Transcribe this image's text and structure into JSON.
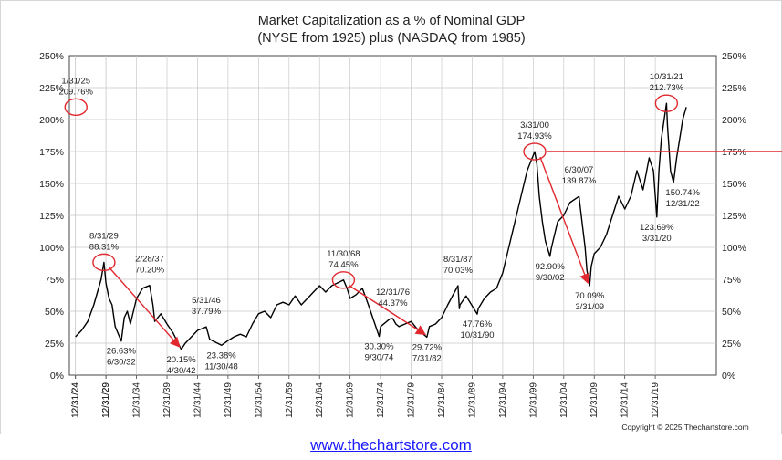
{
  "chart_data": {
    "type": "line",
    "title": "Market Capitalization as a % of Nominal GDP",
    "subtitle": "(NYSE from 1925) plus (NASDAQ from 1985)",
    "xlabel": "",
    "ylabel": "",
    "ylim": [
      0,
      250
    ],
    "y_ticks": [
      "0%",
      "25%",
      "50%",
      "75%",
      "100%",
      "125%",
      "150%",
      "175%",
      "200%",
      "225%",
      "250%"
    ],
    "x_ticks": [
      "12/31/24",
      "12/31/29",
      "12/31/34",
      "12/31/39",
      "12/31/44",
      "12/31/49",
      "12/31/54",
      "12/31/59",
      "12/31/64",
      "12/31/69",
      "12/31/74",
      "12/31/79",
      "12/31/84",
      "12/31/89",
      "12/31/94",
      "12/31/99",
      "12/31/04",
      "12/31/09",
      "12/31/14",
      "12/31/19",
      "12/31/24",
      "12/31/29"
    ],
    "xlim": [
      1924,
      2030
    ],
    "grid": true,
    "reference_line": {
      "value": 175,
      "color": "#e0282e"
    },
    "series": [
      {
        "color": "#000000",
        "x": [
          1925,
          1926,
          1927,
          1928,
          1929.2,
          1929.67,
          1930,
          1930.5,
          1931,
          1931.5,
          1932.5,
          1933,
          1933.5,
          1934,
          1935,
          1936,
          1937.16,
          1937.7,
          1938,
          1939,
          1940,
          1941,
          1942.33,
          1943,
          1944,
          1945,
          1946.42,
          1947,
          1948.92,
          1950,
          1951,
          1952,
          1953,
          1954,
          1955,
          1956,
          1957,
          1958,
          1959,
          1960,
          1961,
          1962,
          1963,
          1964,
          1965,
          1966,
          1967,
          1968.92,
          1969.5,
          1970,
          1971,
          1972,
          1973,
          1974.75,
          1975,
          1976.5,
          1976.99,
          1977.5,
          1978,
          1979,
          1980,
          1981,
          1982.58,
          1983,
          1984,
          1985,
          1986,
          1987.67,
          1987.9,
          1988,
          1989,
          1990.83,
          1991,
          1992,
          1993,
          1994,
          1995,
          1996,
          1997,
          1998,
          1999,
          2000.25,
          2000.6,
          2001,
          2001.5,
          2002,
          2002.75,
          2003,
          2004,
          2005,
          2006,
          2007.5,
          2008,
          2008.5,
          2008.8,
          2009.25,
          2009.5,
          2010,
          2011,
          2012,
          2013,
          2014,
          2015,
          2016,
          2017,
          2018,
          2019,
          2019.7,
          2020.25,
          2020.6,
          2021,
          2021.83,
          2022,
          2022.5,
          2022.99,
          2023.5,
          2024,
          2024.5,
          2025.08
        ],
        "values": [
          30,
          35,
          42,
          55,
          75,
          88.31,
          72,
          60,
          55,
          38,
          26.63,
          45,
          50,
          40,
          60,
          68,
          70.2,
          55,
          42,
          48,
          40,
          33,
          20.15,
          25,
          30,
          35,
          37.79,
          28,
          23.38,
          27,
          30,
          32,
          30,
          40,
          48,
          50,
          45,
          55,
          57,
          55,
          62,
          55,
          60,
          65,
          70,
          65,
          70,
          74.45,
          68,
          60,
          63,
          68,
          55,
          30.3,
          38,
          44,
          44.37,
          40,
          38,
          40,
          42,
          36,
          29.72,
          38,
          40,
          45,
          55,
          70.03,
          52,
          55,
          62,
          47.76,
          52,
          60,
          65,
          68,
          80,
          100,
          120,
          140,
          160,
          174.93,
          165,
          140,
          120,
          105,
          92.9,
          100,
          120,
          125,
          135,
          139.87,
          120,
          100,
          82,
          70.09,
          85,
          95,
          100,
          110,
          125,
          140,
          130,
          140,
          160,
          145,
          170,
          160,
          123.69,
          160,
          185,
          212.73,
          195,
          160,
          150.74,
          170,
          185,
          200,
          209.76
        ]
      }
    ],
    "annotations": [
      {
        "date": "8/31/29",
        "value": "88.31%",
        "circle": true
      },
      {
        "date": "6/30/32",
        "value": "26.63%",
        "below": true
      },
      {
        "date": "2/28/37",
        "value": "70.20%"
      },
      {
        "date": "4/30/42",
        "value": "20.15%",
        "below": true
      },
      {
        "date": "5/31/46",
        "value": "37.79%"
      },
      {
        "date": "11/30/48",
        "value": "23.38%",
        "below": true
      },
      {
        "date": "11/30/68",
        "value": "74.45%",
        "circle": true
      },
      {
        "date": "9/30/74",
        "value": "30.30%",
        "below": true
      },
      {
        "date": "12/31/76",
        "value": "44.37%"
      },
      {
        "date": "7/31/82",
        "value": "29.72%",
        "below": true
      },
      {
        "date": "8/31/87",
        "value": "70.03%"
      },
      {
        "date": "10/31/90",
        "value": "47.76%",
        "below": true
      },
      {
        "date": "3/31/00",
        "value": "174.93%",
        "circle": true
      },
      {
        "date": "9/30/02",
        "value": "92.90%",
        "below": true
      },
      {
        "date": "6/30/07",
        "value": "139.87%"
      },
      {
        "date": "3/31/09",
        "value": "70.09%",
        "below": true
      },
      {
        "date": "10/31/21",
        "value": "212.73%",
        "circle": true
      },
      {
        "date": "3/31/20",
        "value": "123.69%",
        "below": true
      },
      {
        "date": "12/31/22",
        "value": "150.74%",
        "below": true
      },
      {
        "date": "1/31/25",
        "value": "209.76%",
        "circle": true
      }
    ],
    "decline_arrows": [
      {
        "from": "8/31/29",
        "to": "4/30/42"
      },
      {
        "from": "11/30/68",
        "to": "7/31/82"
      },
      {
        "from": "3/31/00",
        "to": "3/31/09"
      }
    ],
    "copyright": "Copyright © 2025 Thechartstore.com"
  },
  "footer": {
    "link_text": "www.thechartstore.com"
  }
}
